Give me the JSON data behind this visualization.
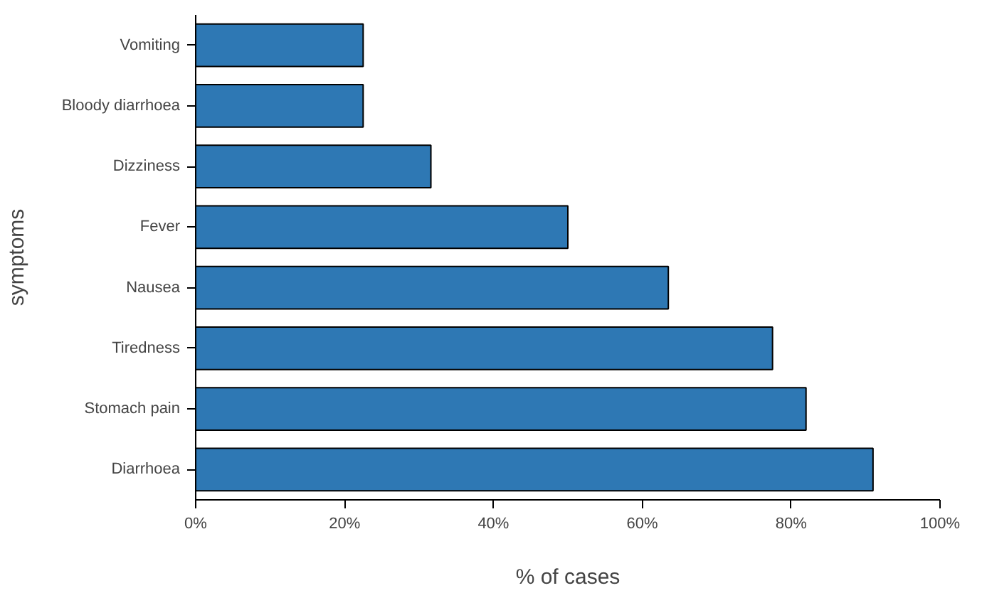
{
  "chart_data": {
    "type": "bar",
    "orientation": "horizontal",
    "xlabel": "% of cases",
    "ylabel": "symptoms",
    "categories": [
      "Vomiting",
      "Bloody diarrhoea",
      "Dizziness",
      "Fever",
      "Nausea",
      "Tiredness",
      "Stomach pain",
      "Diarrhoea"
    ],
    "values": [
      22.5,
      22.5,
      31.6,
      50,
      63.5,
      77.5,
      82,
      91
    ],
    "color": "#2e78b4",
    "xlim": [
      0,
      100
    ],
    "xticks": [
      {
        "value": 0,
        "label": "0%"
      },
      {
        "value": 20,
        "label": "20%"
      },
      {
        "value": 40,
        "label": "40%"
      },
      {
        "value": 60,
        "label": "60%"
      },
      {
        "value": 80,
        "label": "80%"
      },
      {
        "value": 100,
        "label": "100%"
      }
    ],
    "grid": false
  }
}
